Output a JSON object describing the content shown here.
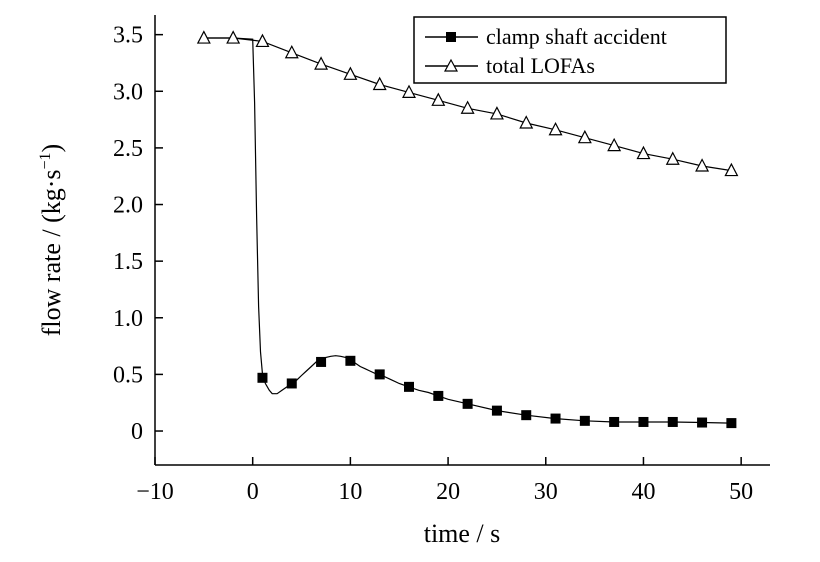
{
  "chart_data": {
    "type": "line",
    "xlabel": "time / s",
    "ylabel": "flow rate / (kg·s",
    "ylabel_sup": "−1",
    "ylabel_close": ")",
    "xlim": [
      -10,
      55
    ],
    "ylim": [
      -0.3,
      3.7
    ],
    "xticks": [
      -10,
      0,
      10,
      20,
      30,
      40,
      50
    ],
    "xtick_labels": [
      "−10",
      "0",
      "10",
      "20",
      "30",
      "40",
      "50"
    ],
    "yticks": [
      0,
      0.5,
      1.0,
      1.5,
      2.0,
      2.5,
      3.0,
      3.5
    ],
    "ytick_labels": [
      "0",
      "0.5",
      "1.0",
      "1.5",
      "2.0",
      "2.5",
      "3.0",
      "3.5"
    ],
    "grid": false,
    "legend_position": "top-right",
    "series": [
      {
        "name": "clamp shaft accident",
        "marker": "filled-square",
        "color": "#000000",
        "line_x": [
          -5,
          -2,
          0,
          0.2,
          0.4,
          0.6,
          0.8,
          1,
          1.3,
          1.7,
          2,
          2.5,
          3,
          3.5,
          4,
          4.5,
          5,
          5.5,
          6,
          6.5,
          7,
          7.5,
          8,
          8.5,
          9,
          9.5,
          10,
          10.5,
          11,
          11.5,
          12,
          12.5,
          13,
          14,
          15,
          16,
          17,
          18,
          19,
          20,
          22,
          25,
          28,
          31,
          34,
          37,
          40,
          43,
          46,
          49
        ],
        "line_y": [
          3.47,
          3.47,
          3.46,
          2.9,
          1.9,
          1.1,
          0.7,
          0.5,
          0.42,
          0.36,
          0.33,
          0.33,
          0.36,
          0.39,
          0.42,
          0.45,
          0.49,
          0.53,
          0.57,
          0.61,
          0.63,
          0.65,
          0.66,
          0.665,
          0.66,
          0.65,
          0.62,
          0.6,
          0.57,
          0.55,
          0.53,
          0.51,
          0.5,
          0.46,
          0.42,
          0.39,
          0.36,
          0.34,
          0.31,
          0.28,
          0.24,
          0.18,
          0.14,
          0.11,
          0.09,
          0.08,
          0.08,
          0.08,
          0.075,
          0.07
        ],
        "marker_x": [
          1,
          4,
          7,
          10,
          13,
          16,
          19,
          22,
          25,
          28,
          31,
          34,
          37,
          40,
          43,
          46,
          49
        ],
        "marker_y": [
          0.47,
          0.42,
          0.61,
          0.62,
          0.5,
          0.39,
          0.31,
          0.24,
          0.18,
          0.14,
          0.11,
          0.09,
          0.08,
          0.08,
          0.08,
          0.075,
          0.07
        ]
      },
      {
        "name": "total LOFAs",
        "marker": "open-triangle",
        "color": "#000000",
        "line_x": [
          -5,
          -2,
          1,
          4,
          7,
          10,
          13,
          16,
          19,
          22,
          25,
          28,
          31,
          34,
          37,
          40,
          43,
          46,
          49
        ],
        "line_y": [
          3.47,
          3.47,
          3.44,
          3.34,
          3.24,
          3.15,
          3.06,
          2.99,
          2.92,
          2.85,
          2.8,
          2.72,
          2.66,
          2.59,
          2.52,
          2.45,
          2.4,
          2.34,
          2.3
        ],
        "marker_x": [
          -5,
          -2,
          1,
          4,
          7,
          10,
          13,
          16,
          19,
          22,
          25,
          28,
          31,
          34,
          37,
          40,
          43,
          46,
          49
        ],
        "marker_y": [
          3.47,
          3.47,
          3.44,
          3.34,
          3.24,
          3.15,
          3.06,
          2.99,
          2.92,
          2.85,
          2.8,
          2.72,
          2.66,
          2.59,
          2.52,
          2.45,
          2.4,
          2.34,
          2.3
        ]
      }
    ]
  }
}
